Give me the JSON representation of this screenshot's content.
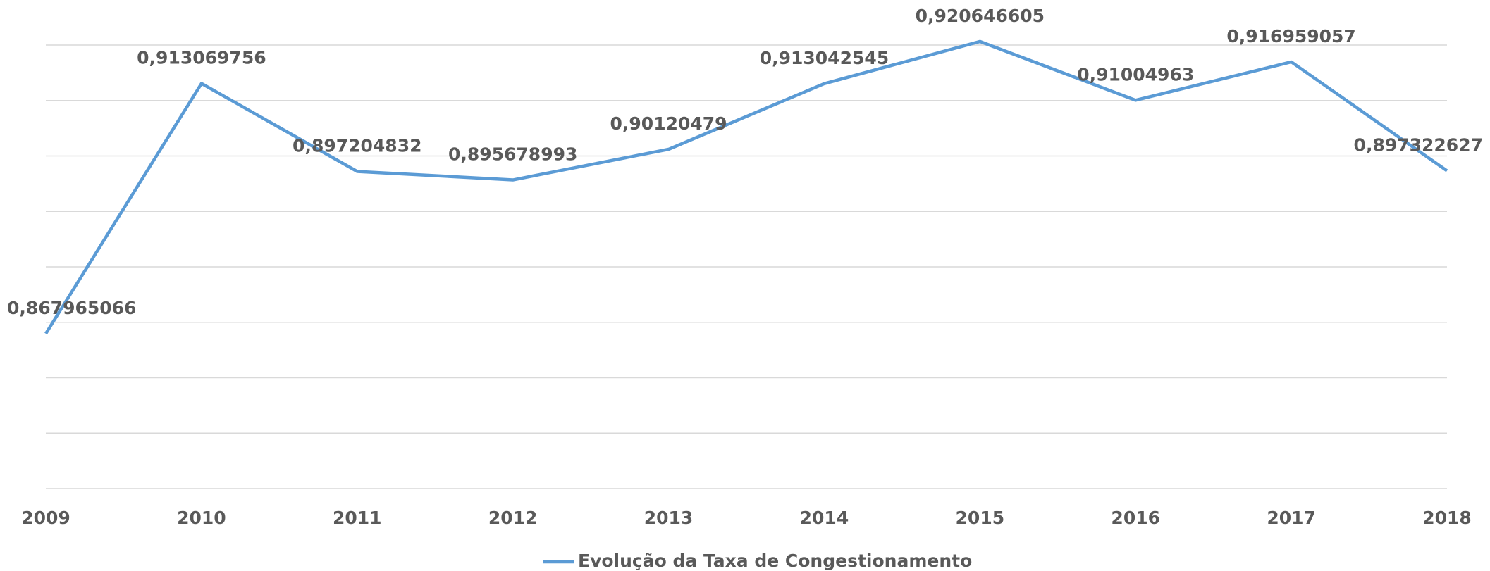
{
  "chart_data": {
    "type": "line",
    "categories": [
      "2009",
      "2010",
      "2011",
      "2012",
      "2013",
      "2014",
      "2015",
      "2016",
      "2017",
      "2018"
    ],
    "series": [
      {
        "name": "Evolução da Taxa de Congestionamento",
        "color": "#5b9bd5",
        "values": [
          0.867965066,
          0.913069756,
          0.897204832,
          0.895678993,
          0.90120479,
          0.913042545,
          0.920646605,
          0.91004963,
          0.916959057,
          0.897322627
        ],
        "value_labels": [
          "0,867965066",
          "0,913069756",
          "0,897204832",
          "0,895678993",
          "0,90120479",
          "0,913042545",
          "0,920646605",
          "0,91004963",
          "0,916959057",
          "0,897322627"
        ]
      }
    ],
    "ylim": [
      0.84,
      0.92
    ],
    "yticks": [
      0.84,
      0.85,
      0.86,
      0.87,
      0.88,
      0.89,
      0.9,
      0.91,
      0.92
    ],
    "grid": true,
    "legend": "bottom"
  }
}
